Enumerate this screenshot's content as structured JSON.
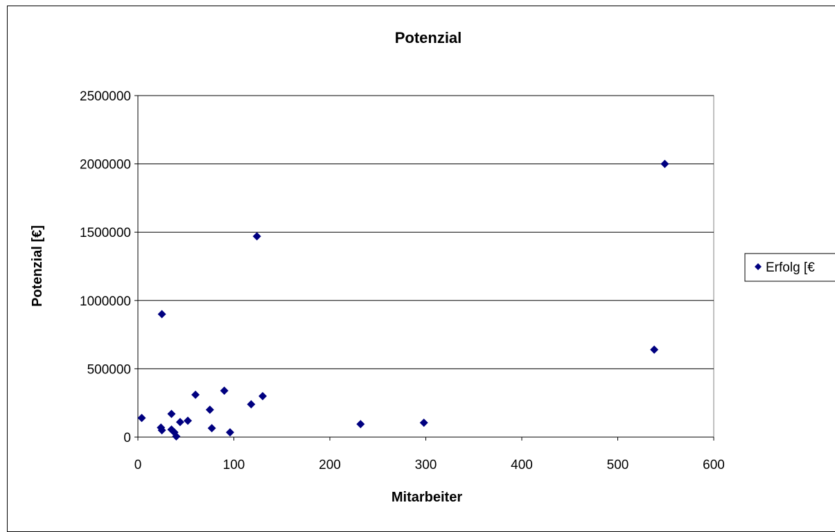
{
  "chart_data": {
    "type": "scatter",
    "title": "Potenzial",
    "xlabel": "Mitarbeiter",
    "ylabel": "Potenzial [€]",
    "xlim": [
      0,
      600
    ],
    "ylim": [
      0,
      2500000
    ],
    "x_ticks": [
      "0",
      "100",
      "200",
      "300",
      "400",
      "500",
      "600"
    ],
    "y_ticks": [
      "0",
      "500000",
      "1000000",
      "1500000",
      "2000000",
      "2500000"
    ],
    "grid": "horizontal",
    "legend_position": "right",
    "series": [
      {
        "name": "Erfolg [€",
        "color": "#000080",
        "marker": "diamond",
        "points": [
          {
            "x": 4,
            "y": 140000
          },
          {
            "x": 24,
            "y": 70000
          },
          {
            "x": 25,
            "y": 50000
          },
          {
            "x": 25,
            "y": 900000
          },
          {
            "x": 35,
            "y": 170000
          },
          {
            "x": 35,
            "y": 55000
          },
          {
            "x": 38,
            "y": 35000
          },
          {
            "x": 40,
            "y": 5000
          },
          {
            "x": 44,
            "y": 110000
          },
          {
            "x": 52,
            "y": 120000
          },
          {
            "x": 60,
            "y": 310000
          },
          {
            "x": 75,
            "y": 200000
          },
          {
            "x": 77,
            "y": 65000
          },
          {
            "x": 90,
            "y": 340000
          },
          {
            "x": 96,
            "y": 35000
          },
          {
            "x": 118,
            "y": 240000
          },
          {
            "x": 124,
            "y": 1470000
          },
          {
            "x": 130,
            "y": 300000
          },
          {
            "x": 232,
            "y": 95000
          },
          {
            "x": 298,
            "y": 105000
          },
          {
            "x": 538,
            "y": 640000
          },
          {
            "x": 549,
            "y": 2000000
          }
        ]
      }
    ]
  }
}
